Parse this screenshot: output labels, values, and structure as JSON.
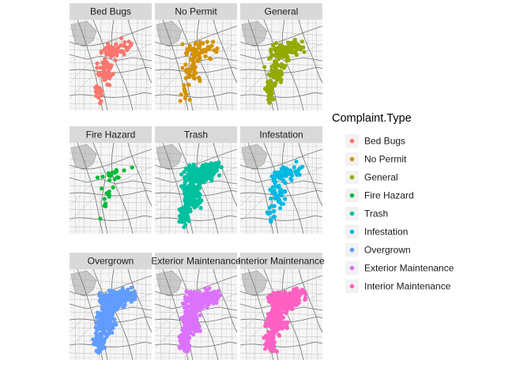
{
  "chart_data": {
    "type": "scatter",
    "facet_wrap": {
      "ncol": 3,
      "nrow": 3
    },
    "background": "street map",
    "legend": {
      "title": "Complaint.Type",
      "position": "right"
    },
    "panels": [
      {
        "label": "Bed Bugs",
        "color": "#F8766D",
        "density": "medium"
      },
      {
        "label": "No Permit",
        "color": "#D39200",
        "density": "medium"
      },
      {
        "label": "General",
        "color": "#93AA00",
        "density": "medium-high"
      },
      {
        "label": "Fire Hazard",
        "color": "#00BA38",
        "density": "low"
      },
      {
        "label": "Trash",
        "color": "#00C19F",
        "density": "very-high"
      },
      {
        "label": "Infestation",
        "color": "#00B9E3",
        "density": "medium"
      },
      {
        "label": "Overgrown",
        "color": "#619CFF",
        "density": "very-high"
      },
      {
        "label": "Exterior Maintenance",
        "color": "#DB72FB",
        "density": "very-high"
      },
      {
        "label": "Interior Maintenance",
        "color": "#FF61C3",
        "density": "very-high"
      }
    ]
  }
}
